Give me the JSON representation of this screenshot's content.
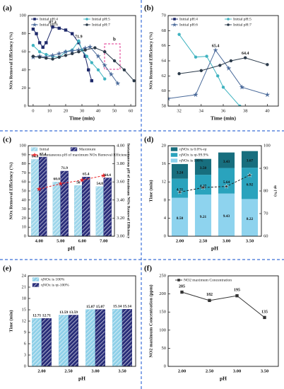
{
  "chart_data": [
    {
      "type": "line",
      "label": "(a)",
      "xlabel": "Time (min)",
      "ylabel": "NOx Removal Efficiency (%)",
      "inset_label": "b",
      "xlim": [
        -3,
        63
      ],
      "xticks": [
        0,
        10,
        20,
        30,
        40,
        50,
        60
      ],
      "ylim": [
        0,
        100
      ],
      "yticks": [
        0,
        20,
        40,
        60,
        80,
        100
      ],
      "series": [
        {
          "name": "Initial pH:4",
          "color": "#1f2a6b",
          "marker": "square",
          "peak_label": true,
          "x": [
            0,
            2,
            4,
            6,
            8,
            12,
            16,
            20,
            24,
            28,
            32,
            34,
            36
          ],
          "values": [
            85,
            80,
            70,
            65,
            70,
            87.4,
            86,
            84,
            80,
            70,
            55,
            40,
            28
          ]
        },
        {
          "name": "Initial pH:5",
          "color": "#3fb3c0",
          "marker": "circle",
          "peak_label": true,
          "x": [
            0,
            4,
            8,
            12,
            16,
            20,
            24,
            28,
            30,
            33,
            36,
            40,
            44
          ],
          "values": [
            67,
            60,
            57,
            55,
            54,
            60,
            62,
            71.9,
            62,
            55,
            48,
            40,
            30
          ]
        },
        {
          "name": "Initial pH:6",
          "color": "#4a6a9a",
          "marker": "star",
          "x": [
            0,
            4,
            8,
            12,
            16,
            20,
            24,
            28,
            32,
            35,
            40,
            44,
            48,
            52
          ],
          "values": [
            54,
            55,
            54,
            56,
            58,
            60,
            61,
            62,
            64,
            65.4,
            55,
            45,
            35,
            25
          ]
        },
        {
          "name": "Initial pH:7",
          "color": "#2b3a4a",
          "marker": "circle",
          "x": [
            0,
            4,
            8,
            12,
            16,
            20,
            24,
            28,
            32,
            38,
            44,
            50,
            56,
            62
          ],
          "values": [
            55,
            54,
            53,
            52,
            54,
            56,
            58,
            60,
            62,
            64.4,
            60,
            50,
            40,
            28
          ]
        }
      ]
    },
    {
      "type": "line",
      "label": "(b)",
      "label_color": "#c0228c",
      "xlabel": "Time (min)",
      "ylabel": "NOx Removal Efficiency (%)",
      "xlim": [
        31,
        41
      ],
      "xticks": [
        32,
        34,
        36,
        38,
        40
      ],
      "ylim": [
        58,
        70
      ],
      "yticks": [
        58,
        60,
        62,
        64,
        66,
        68,
        70
      ],
      "series": [
        {
          "name": "Initial pH:4",
          "color": "#1f2a6b",
          "marker": "square",
          "x": [],
          "values": []
        },
        {
          "name": "Initial pH:5",
          "color": "#3fb3c0",
          "marker": "circle",
          "x": [
            32,
            33.5,
            34.5,
            35.5,
            36,
            37.5
          ],
          "values": [
            67.5,
            64.5,
            64.6,
            62,
            60.5,
            58
          ]
        },
        {
          "name": "Initial pH:6",
          "color": "#4a6a9a",
          "marker": "star",
          "peak_label": true,
          "x": [
            31,
            33.5,
            35.3,
            36.5,
            37.7,
            40
          ],
          "values": [
            59,
            59.5,
            65.4,
            63,
            60.5,
            59.5
          ]
        },
        {
          "name": "Initial pH:7",
          "color": "#2b3a4a",
          "marker": "circle",
          "peak_label": true,
          "x": [
            32,
            34,
            35.7,
            36.7,
            38,
            40
          ],
          "values": [
            62.3,
            62.7,
            63.4,
            64,
            64.4,
            63.5
          ]
        }
      ]
    },
    {
      "type": "bar",
      "label": "(c)",
      "xlabel": "pH",
      "ylabel": "NOx Removal Efficiency (%)",
      "y2label": "Instantaneous pH of maximum NOx Removal Efficiency",
      "categories": [
        "4.00",
        "5.00",
        "6.00",
        "7.00"
      ],
      "ylim": [
        0,
        100
      ],
      "yticks": [
        0,
        10,
        20,
        30,
        40,
        50,
        60,
        70,
        80,
        90,
        100
      ],
      "y2lim": [
        3,
        4
      ],
      "y2ticks": [
        {
          "value": 3,
          "label": "3.00"
        },
        {
          "value": 3.2,
          "label": "3.20"
        },
        {
          "value": 3.4,
          "label": "3.40"
        },
        {
          "value": 3.6,
          "label": "3.60"
        },
        {
          "value": 3.8,
          "label": "3.80"
        },
        {
          "value": 4,
          "label": "4.00"
        }
      ],
      "series": [
        {
          "name": "Initial",
          "color": "#9fd6ea",
          "pattern": "hatch",
          "values": [
            84.8,
            60.0,
            56,
            54.8
          ],
          "value_labels": [
            "84.8",
            "60.0",
            "56",
            "54.8"
          ]
        },
        {
          "name": "Maximum",
          "color": "#2c2f7c",
          "pattern": "hatch",
          "values": [
            87.4,
            71.9,
            65.4,
            64.4
          ]
        },
        {
          "name": "Instantaneous pH of maximum NOx Removal Efficiency",
          "color": "#e8262a",
          "marker": "star",
          "axis": "y2",
          "values": [
            3.52,
            3.58,
            3.62,
            3.67
          ]
        }
      ]
    },
    {
      "type": "stacked_bar",
      "label": "(d)",
      "xlabel": "pH",
      "ylabel": "Time (min)",
      "y2label": "ηt (%)",
      "categories": [
        "2.00",
        "2.50",
        "3.00",
        "3.50"
      ],
      "ylim": [
        0,
        20
      ],
      "yticks": [
        0,
        4,
        8,
        12,
        16,
        20
      ],
      "y2lim": [
        60,
        100
      ],
      "y2ticks": [
        60,
        70,
        80,
        90,
        100
      ],
      "series": [
        {
          "name": "ηNOx is 100%",
          "color": "#8ed3ee",
          "values": [
            8.5,
            9.21,
            9.43,
            8.22
          ],
          "value_labels": [
            "8.50",
            "9.21",
            "9.43",
            "8.22"
          ]
        },
        {
          "name": "ηNOx is ηt-99.9%",
          "color": "#2aa3bd",
          "values": [
            4.21,
            4.37,
            5.64,
            6.92
          ]
        },
        {
          "name": "ηNOx is 0.0%-ηt",
          "color": "#176e7e",
          "values": [
            3.24,
            3.5,
            3.43,
            3.67
          ],
          "value_labels": [
            "3.24",
            "3.50",
            "3.43",
            "3.67"
          ]
        }
      ],
      "line": {
        "color": "#222",
        "marker": "star",
        "axis": "y2",
        "values": [
          79.5,
          81.5,
          82,
          87
        ]
      }
    },
    {
      "type": "bar",
      "label": "(e)",
      "xlabel": "pH",
      "ylabel": "Time (min)",
      "categories": [
        "2.00",
        "2.50",
        "3.00",
        "3.50"
      ],
      "ylim": [
        0,
        24
      ],
      "yticks": [
        0,
        3,
        6,
        9,
        12,
        15,
        18,
        21,
        24
      ],
      "series": [
        {
          "name": "ηNOx is 100%",
          "color": "#8fd0e8",
          "pattern": "hatch",
          "values": [
            12.71,
            13.59,
            15.07,
            15.14
          ]
        },
        {
          "name": "ηNOx is ηt-100%",
          "color": "#2a2f7a",
          "pattern": "hatch",
          "values": [
            12.71,
            13.59,
            15.07,
            15.14
          ]
        }
      ]
    },
    {
      "type": "line",
      "label": "(f)",
      "xlabel": "pH",
      "ylabel": "NO2 maximum Concentration (ppm)",
      "categories": [
        "2.00",
        "2.50",
        "3.00",
        "3.50"
      ],
      "ylim": [
        0,
        250
      ],
      "yticks": [
        0,
        50,
        100,
        150,
        200,
        250
      ],
      "series": [
        {
          "name": "NO2 maximum Concentration",
          "color": "#333",
          "marker": "square",
          "show_values": true,
          "values": [
            205,
            182,
            195,
            135
          ]
        }
      ]
    }
  ]
}
